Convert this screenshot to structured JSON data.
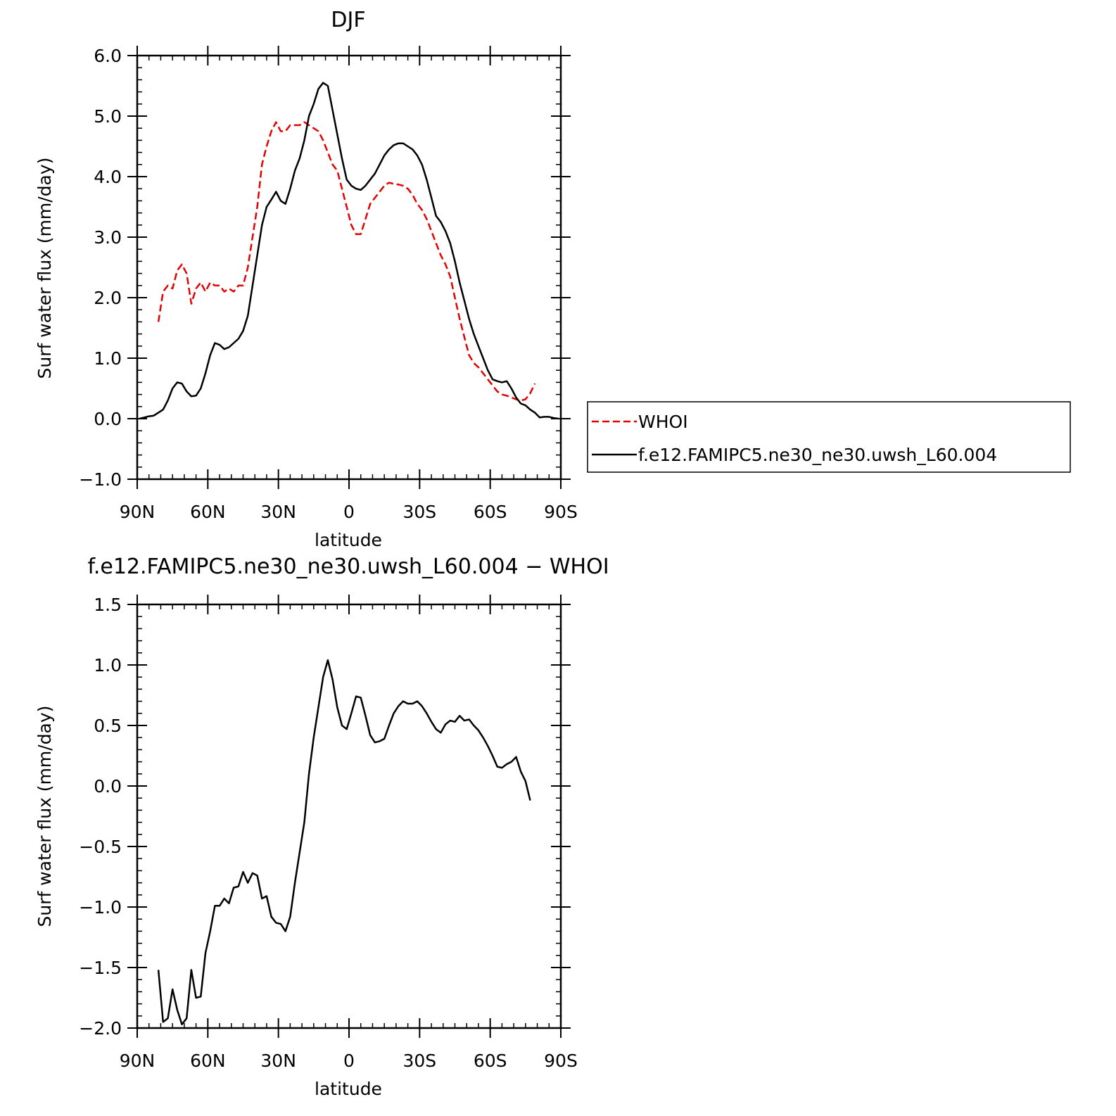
{
  "chart_data": [
    {
      "type": "line",
      "title": "DJF",
      "xlabel": "latitude",
      "ylabel": "Surf water flux (mm/day)",
      "xlim": [
        90,
        -90
      ],
      "ylim": [
        -1.0,
        6.0
      ],
      "x_ticks": [
        90,
        60,
        30,
        0,
        -30,
        -60,
        -90
      ],
      "x_tick_labels": [
        "90N",
        "60N",
        "30N",
        "0",
        "30S",
        "60S",
        "90S"
      ],
      "y_ticks": [
        -1.0,
        0.0,
        1.0,
        2.0,
        3.0,
        4.0,
        5.0,
        6.0
      ],
      "y_tick_labels": [
        "−1.0",
        "0.0",
        "1.0",
        "2.0",
        "3.0",
        "4.0",
        "5.0",
        "6.0"
      ],
      "legend_position": "right",
      "series": [
        {
          "name": "WHOI",
          "color": "#e60000",
          "dash": "dashed",
          "x": [
            81,
            79,
            77,
            75,
            73,
            71,
            69,
            67,
            65,
            63,
            61,
            59,
            57,
            55,
            53,
            51,
            49,
            47,
            45,
            43,
            41,
            39,
            37,
            35,
            33,
            31,
            29,
            27,
            25,
            23,
            21,
            19,
            17,
            15,
            13,
            11,
            9,
            7,
            5,
            3,
            1,
            -1,
            -3,
            -5,
            -7,
            -9,
            -11,
            -13,
            -15,
            -17,
            -19,
            -21,
            -23,
            -25,
            -27,
            -29,
            -31,
            -33,
            -35,
            -37,
            -39,
            -41,
            -43,
            -45,
            -47,
            -49,
            -51,
            -53,
            -55,
            -57,
            -59,
            -61,
            -63,
            -65,
            -67,
            -69,
            -71,
            -73,
            -75,
            -77,
            -79
          ],
          "y": [
            1.6,
            2.1,
            2.2,
            2.15,
            2.45,
            2.55,
            2.4,
            1.9,
            2.15,
            2.25,
            2.1,
            2.25,
            2.2,
            2.2,
            2.1,
            2.15,
            2.1,
            2.2,
            2.2,
            2.5,
            3.0,
            3.5,
            4.2,
            4.5,
            4.75,
            4.9,
            4.75,
            4.75,
            4.85,
            4.85,
            4.85,
            4.9,
            4.85,
            4.8,
            4.75,
            4.6,
            4.4,
            4.2,
            4.1,
            3.8,
            3.5,
            3.2,
            3.05,
            3.05,
            3.3,
            3.55,
            3.65,
            3.75,
            3.85,
            3.9,
            3.88,
            3.87,
            3.85,
            3.8,
            3.7,
            3.55,
            3.45,
            3.3,
            3.1,
            2.9,
            2.7,
            2.55,
            2.35,
            2.0,
            1.65,
            1.35,
            1.05,
            0.92,
            0.85,
            0.75,
            0.65,
            0.55,
            0.45,
            0.4,
            0.38,
            0.35,
            0.32,
            0.3,
            0.32,
            0.42,
            0.58
          ]
        },
        {
          "name": "f.e12.FAMIPC5.ne30_ne30.uwsh_L60.004",
          "color": "#000000",
          "dash": "solid",
          "x": [
            89,
            87,
            85,
            83,
            81,
            79,
            77,
            75,
            73,
            71,
            69,
            67,
            65,
            63,
            61,
            59,
            57,
            55,
            53,
            51,
            49,
            47,
            45,
            43,
            41,
            39,
            37,
            35,
            33,
            31,
            29,
            27,
            25,
            23,
            21,
            19,
            17,
            15,
            13,
            11,
            9,
            7,
            5,
            3,
            1,
            -1,
            -3,
            -5,
            -7,
            -9,
            -11,
            -13,
            -15,
            -17,
            -19,
            -21,
            -23,
            -25,
            -27,
            -29,
            -31,
            -33,
            -35,
            -37,
            -39,
            -41,
            -43,
            -45,
            -47,
            -49,
            -51,
            -53,
            -55,
            -57,
            -59,
            -61,
            -63,
            -65,
            -67,
            -69,
            -71,
            -73,
            -75,
            -77,
            -79,
            -81,
            -83,
            -85,
            -87,
            -89
          ],
          "y": [
            0.0,
            0.02,
            0.04,
            0.05,
            0.1,
            0.15,
            0.3,
            0.5,
            0.6,
            0.58,
            0.45,
            0.37,
            0.38,
            0.5,
            0.75,
            1.05,
            1.25,
            1.22,
            1.15,
            1.18,
            1.25,
            1.32,
            1.45,
            1.7,
            2.2,
            2.7,
            3.2,
            3.5,
            3.62,
            3.75,
            3.6,
            3.55,
            3.8,
            4.1,
            4.3,
            4.6,
            5.0,
            5.2,
            5.45,
            5.55,
            5.5,
            5.1,
            4.7,
            4.3,
            3.95,
            3.85,
            3.8,
            3.78,
            3.85,
            3.95,
            4.05,
            4.2,
            4.35,
            4.45,
            4.52,
            4.55,
            4.55,
            4.5,
            4.45,
            4.35,
            4.2,
            3.95,
            3.65,
            3.35,
            3.25,
            3.1,
            2.9,
            2.6,
            2.25,
            1.95,
            1.65,
            1.4,
            1.2,
            1.0,
            0.8,
            0.65,
            0.62,
            0.6,
            0.62,
            0.5,
            0.35,
            0.25,
            0.22,
            0.15,
            0.1,
            0.02,
            0.03,
            0.03,
            0.01,
            0.0
          ]
        }
      ]
    },
    {
      "type": "line",
      "title": "f.e12.FAMIPC5.ne30_ne30.uwsh_L60.004 − WHOI",
      "xlabel": "latitude",
      "ylabel": "Surf water flux (mm/day)",
      "xlim": [
        90,
        -90
      ],
      "ylim": [
        -2.0,
        1.5
      ],
      "x_ticks": [
        90,
        60,
        30,
        0,
        -30,
        -60,
        -90
      ],
      "x_tick_labels": [
        "90N",
        "60N",
        "30N",
        "0",
        "30S",
        "60S",
        "90S"
      ],
      "y_ticks": [
        -2.0,
        -1.5,
        -1.0,
        -0.5,
        0.0,
        0.5,
        1.0,
        1.5
      ],
      "y_tick_labels": [
        "−2.0",
        "−1.5",
        "−1.0",
        "−0.5",
        "0.0",
        "0.5",
        "1.0",
        "1.5"
      ],
      "series": [
        {
          "name": "",
          "color": "#000000",
          "dash": "solid",
          "x": [
            81,
            79,
            77,
            75,
            73,
            71,
            69,
            67,
            65,
            63,
            61,
            59,
            57,
            55,
            53,
            51,
            49,
            47,
            45,
            43,
            41,
            39,
            37,
            35,
            33,
            31,
            29,
            27,
            25,
            23,
            21,
            19,
            17,
            15,
            13,
            11,
            9,
            7,
            5,
            3,
            1,
            -1,
            -3,
            -5,
            -7,
            -9,
            -11,
            -13,
            -15,
            -17,
            -19,
            -21,
            -23,
            -25,
            -27,
            -29,
            -31,
            -33,
            -35,
            -37,
            -39,
            -41,
            -43,
            -45,
            -47,
            -49,
            -51,
            -53,
            -55,
            -57,
            -59,
            -61,
            -63,
            -65,
            -67,
            -69,
            -71,
            -73,
            -75,
            -77
          ],
          "y": [
            -1.52,
            -1.95,
            -1.92,
            -1.68,
            -1.85,
            -1.97,
            -1.92,
            -1.52,
            -1.75,
            -1.74,
            -1.38,
            -1.2,
            -0.99,
            -0.99,
            -0.93,
            -0.97,
            -0.84,
            -0.83,
            -0.71,
            -0.8,
            -0.72,
            -0.74,
            -0.93,
            -0.91,
            -1.08,
            -1.13,
            -1.14,
            -1.2,
            -1.08,
            -0.8,
            -0.55,
            -0.3,
            0.1,
            0.4,
            0.65,
            0.9,
            1.04,
            0.88,
            0.65,
            0.5,
            0.47,
            0.6,
            0.74,
            0.73,
            0.58,
            0.42,
            0.36,
            0.37,
            0.39,
            0.5,
            0.6,
            0.66,
            0.7,
            0.68,
            0.68,
            0.7,
            0.66,
            0.6,
            0.53,
            0.47,
            0.44,
            0.51,
            0.54,
            0.53,
            0.58,
            0.54,
            0.55,
            0.5,
            0.46,
            0.4,
            0.33,
            0.25,
            0.16,
            0.15,
            0.18,
            0.2,
            0.24,
            0.12,
            0.04,
            -0.12
          ]
        }
      ]
    }
  ]
}
